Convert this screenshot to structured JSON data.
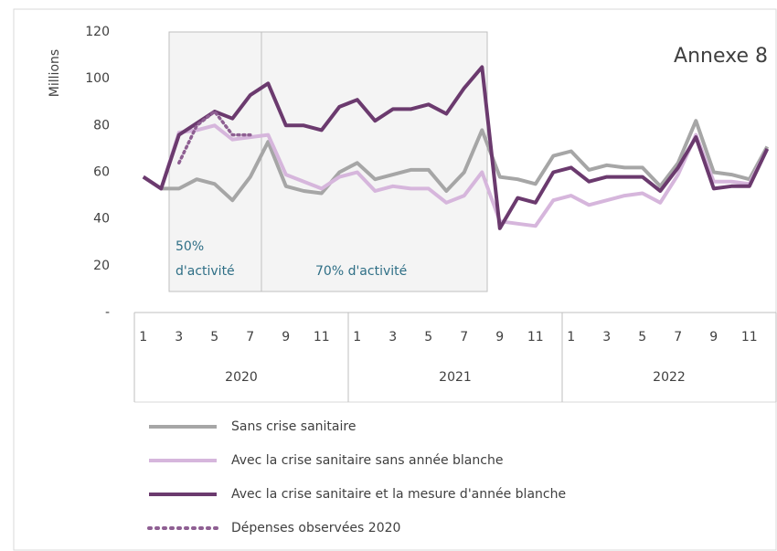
{
  "chart_data": {
    "type": "line",
    "title": "Annexe 8",
    "y_label": "Millions",
    "categories": [
      "1",
      null,
      "3",
      null,
      "5",
      null,
      "7",
      null,
      "9",
      null,
      "11",
      null,
      "1",
      null,
      "3",
      null,
      "5",
      null,
      "7",
      null,
      "9",
      null,
      "11",
      null,
      "1",
      null,
      "3",
      null,
      "5",
      null,
      "7",
      null,
      "9",
      null,
      "11",
      null
    ],
    "groups": [
      "2020",
      "2021",
      "2022"
    ],
    "ylim": [
      0,
      120
    ],
    "yticks": [
      {
        "value": 0,
        "label": "-"
      },
      20,
      40,
      60,
      80,
      100,
      120
    ],
    "annotations": [
      [
        "50%",
        "d'activité"
      ],
      [
        "70% d'activité"
      ]
    ],
    "series": [
      {
        "name": "Sans crise sanitaire",
        "color": "#a6a6a6",
        "style": "solid",
        "values": [
          58,
          53,
          53,
          57,
          55,
          48,
          58,
          73,
          54,
          52,
          51,
          60,
          64,
          57,
          59,
          61,
          61,
          52,
          60,
          78,
          58,
          57,
          55,
          67,
          69,
          61,
          63,
          62,
          62,
          54,
          64,
          82,
          60,
          59,
          57,
          71
        ]
      },
      {
        "name": "Avec la crise sanitaire sans année blanche",
        "color": "#d6b6dc",
        "style": "solid",
        "values": [
          58,
          53,
          77,
          78,
          80,
          74,
          75,
          76,
          59,
          56,
          53,
          58,
          60,
          52,
          54,
          53,
          53,
          47,
          50,
          60,
          39,
          38,
          37,
          48,
          50,
          46,
          48,
          50,
          51,
          47,
          59,
          76,
          56,
          56,
          55,
          70
        ]
      },
      {
        "name": "Avec la crise sanitaire et la mesure d'année blanche",
        "color": "#6b3a6e",
        "style": "solid",
        "values": [
          58,
          53,
          76,
          81,
          86,
          83,
          93,
          98,
          80,
          80,
          78,
          88,
          91,
          82,
          87,
          87,
          89,
          85,
          96,
          105,
          36,
          49,
          47,
          60,
          62,
          56,
          58,
          58,
          58,
          52,
          62,
          75,
          53,
          54,
          54,
          70
        ]
      },
      {
        "name": "Dépenses observées 2020",
        "color": "#8e5f92",
        "style": "dotted",
        "values": [
          null,
          null,
          64,
          80,
          86,
          76,
          76,
          null,
          null,
          null,
          null,
          null,
          null,
          null,
          null,
          null,
          null,
          null,
          null,
          null,
          null,
          null,
          null,
          null,
          null,
          null,
          null,
          null,
          null,
          null,
          null,
          null,
          null,
          null,
          null,
          null
        ]
      }
    ]
  }
}
